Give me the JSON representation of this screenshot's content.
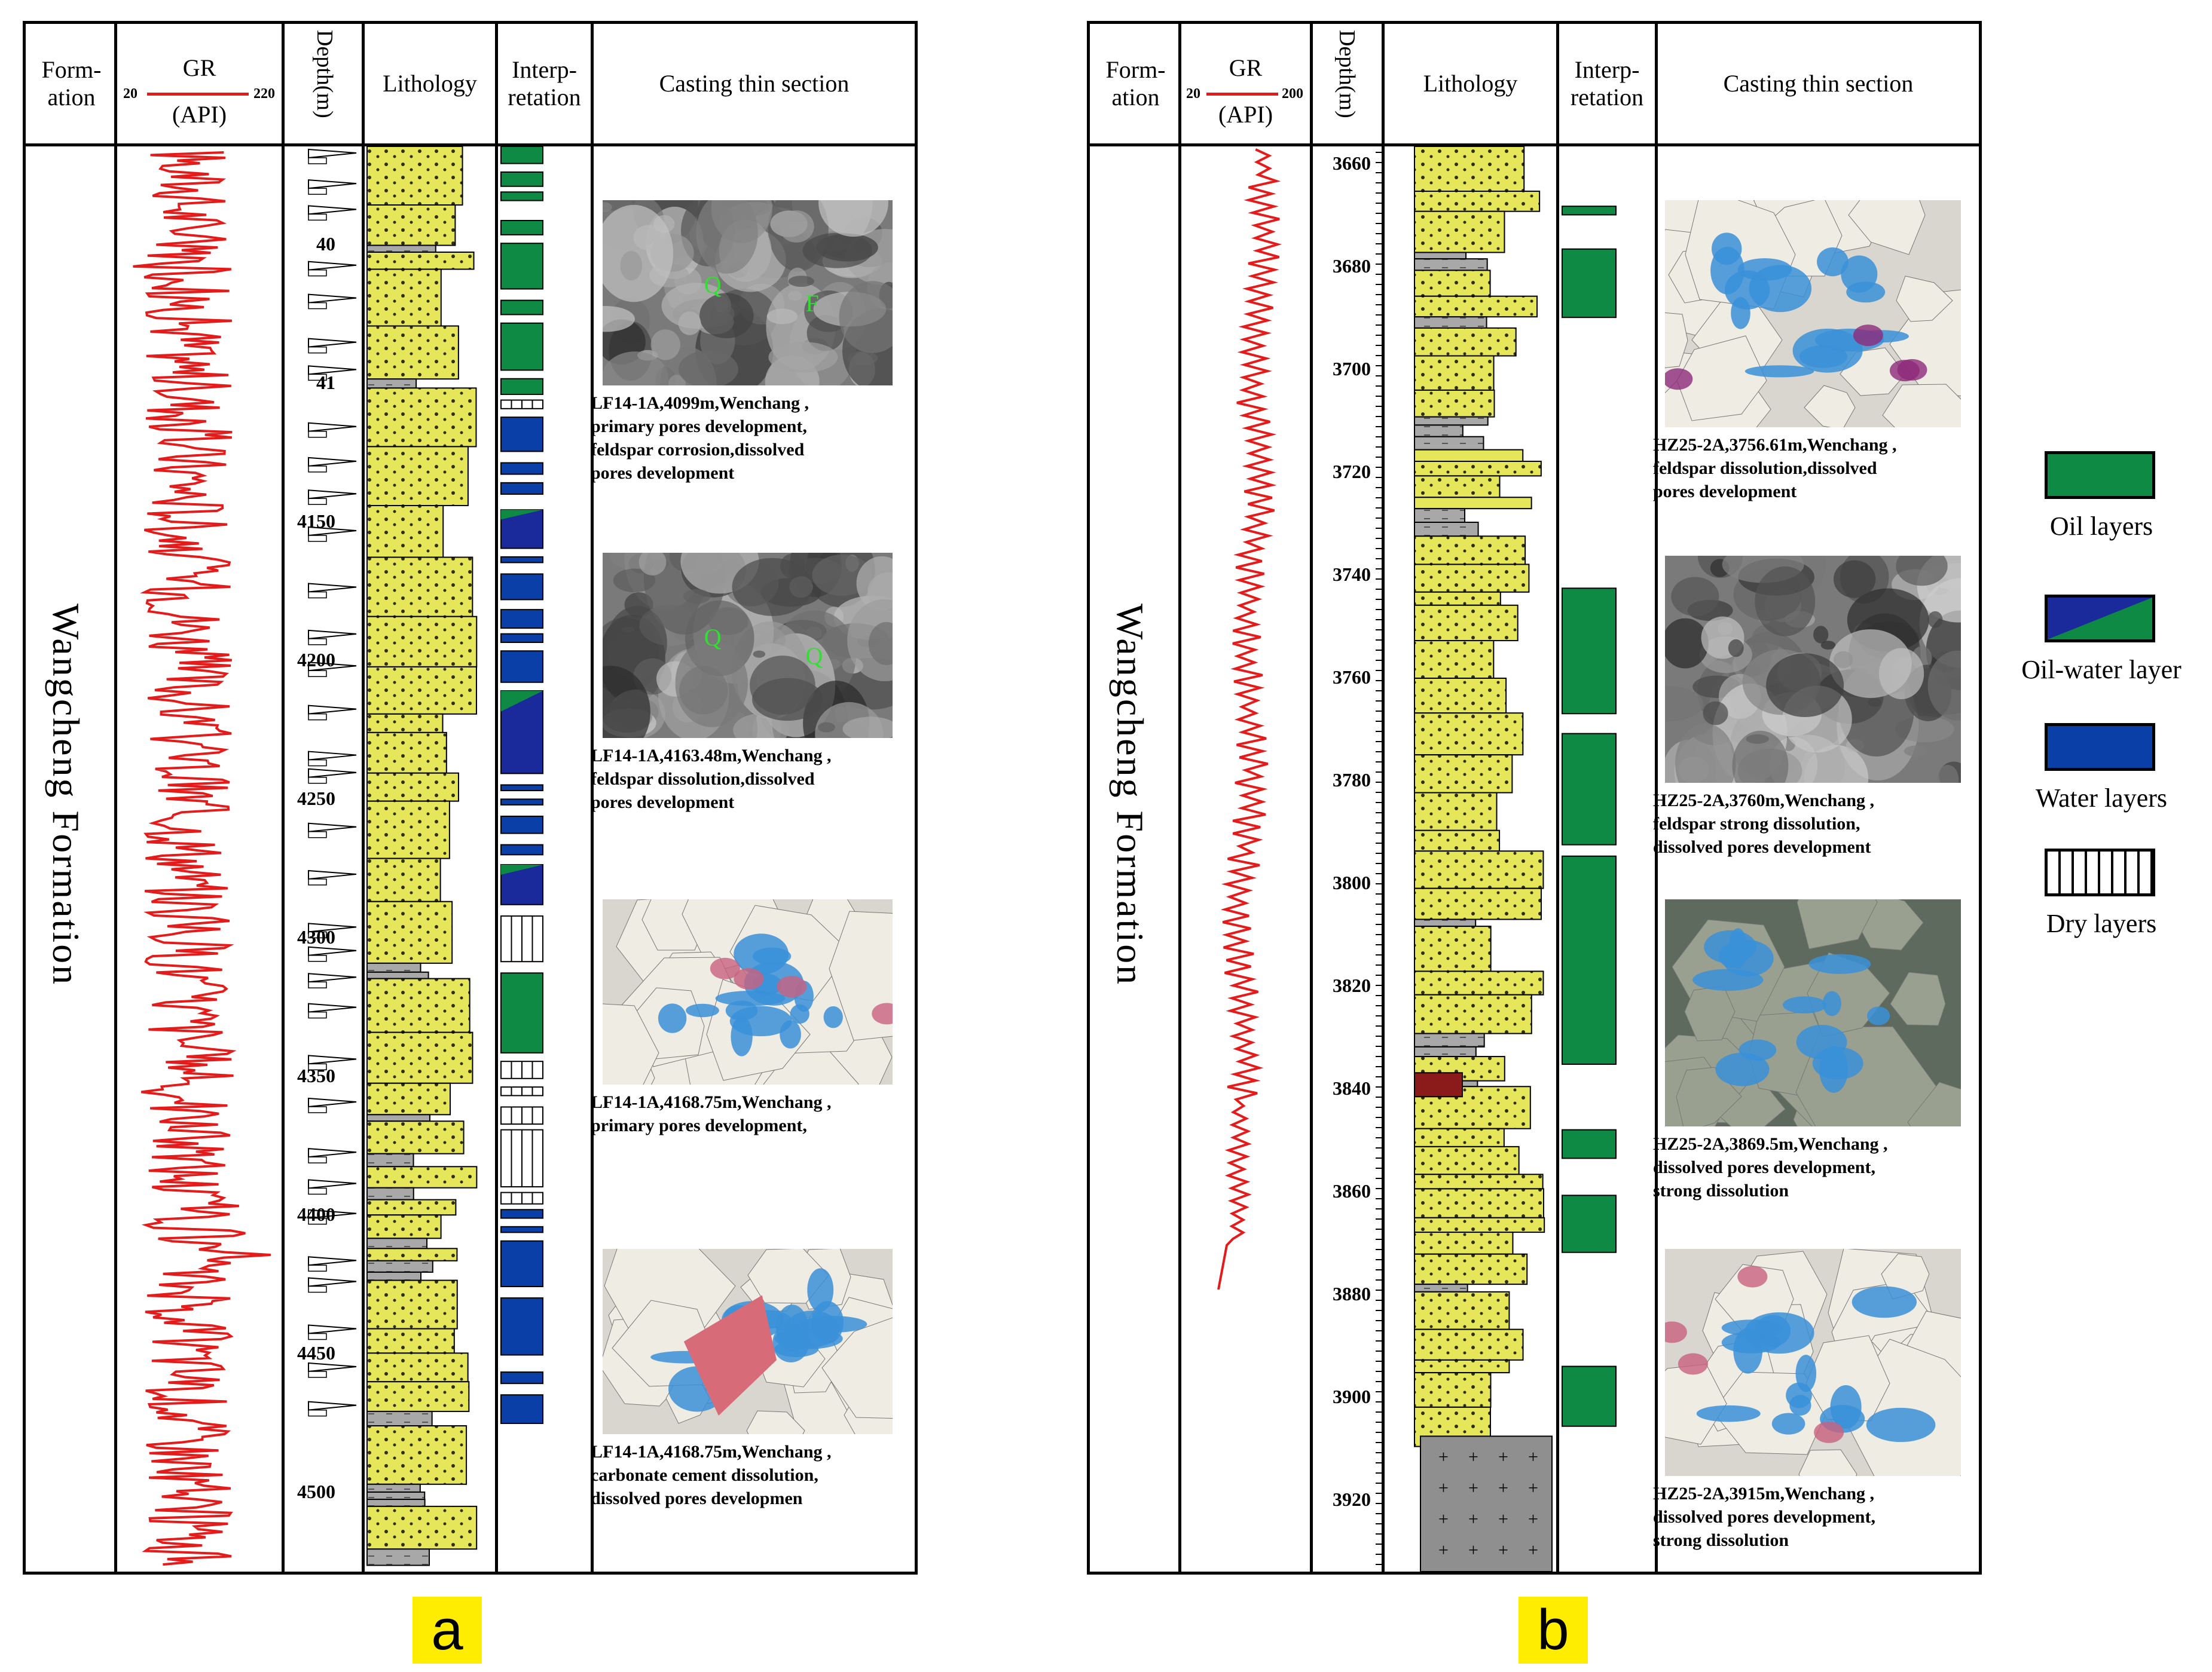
{
  "panel_a": {
    "label": "a",
    "headers": {
      "formation": "Form-\nation",
      "gr_title": "GR",
      "gr_min": "20",
      "gr_max": "220",
      "gr_unit": "(API)",
      "depth": "Depth(m)",
      "lithology": "Lithology",
      "interpretation": "Interp-\nretation",
      "thin_section": "Casting thin section"
    },
    "formation_name": "Wangcheng Formation",
    "depth_ticks": [
      "40",
      "41",
      "4150",
      "4200",
      "4250",
      "4300",
      "4350",
      "4400",
      "4450",
      "4500"
    ],
    "interpretation_intervals": [
      {
        "type": "oil",
        "top": 0.0,
        "bottom": 0.012
      },
      {
        "type": "oil",
        "top": 0.018,
        "bottom": 0.028
      },
      {
        "type": "oil",
        "top": 0.032,
        "bottom": 0.038
      },
      {
        "type": "oil",
        "top": 0.052,
        "bottom": 0.062
      },
      {
        "type": "oil",
        "top": 0.068,
        "bottom": 0.1
      },
      {
        "type": "oil",
        "top": 0.108,
        "bottom": 0.118
      },
      {
        "type": "oil",
        "top": 0.124,
        "bottom": 0.157
      },
      {
        "type": "oil",
        "top": 0.163,
        "bottom": 0.174
      },
      {
        "type": "dry",
        "top": 0.178,
        "bottom": 0.184
      },
      {
        "type": "water",
        "top": 0.19,
        "bottom": 0.214
      },
      {
        "type": "water",
        "top": 0.222,
        "bottom": 0.23
      },
      {
        "type": "water",
        "top": 0.236,
        "bottom": 0.244
      },
      {
        "type": "oil-water",
        "top": 0.255,
        "bottom": 0.282
      },
      {
        "type": "water",
        "top": 0.288,
        "bottom": 0.292
      },
      {
        "type": "water",
        "top": 0.3,
        "bottom": 0.318
      },
      {
        "type": "water",
        "top": 0.325,
        "bottom": 0.338
      },
      {
        "type": "water",
        "top": 0.342,
        "bottom": 0.348
      },
      {
        "type": "water",
        "top": 0.354,
        "bottom": 0.376
      },
      {
        "type": "oil-water",
        "top": 0.382,
        "bottom": 0.44
      },
      {
        "type": "water",
        "top": 0.448,
        "bottom": 0.452
      },
      {
        "type": "water",
        "top": 0.458,
        "bottom": 0.462
      },
      {
        "type": "water",
        "top": 0.47,
        "bottom": 0.482
      },
      {
        "type": "water",
        "top": 0.49,
        "bottom": 0.497
      },
      {
        "type": "oil-water",
        "top": 0.504,
        "bottom": 0.532
      },
      {
        "type": "dry",
        "top": 0.54,
        "bottom": 0.572
      },
      {
        "type": "oil",
        "top": 0.58,
        "bottom": 0.636
      },
      {
        "type": "dry",
        "top": 0.642,
        "bottom": 0.654
      },
      {
        "type": "dry",
        "top": 0.66,
        "bottom": 0.666
      },
      {
        "type": "dry",
        "top": 0.674,
        "bottom": 0.686
      },
      {
        "type": "dry",
        "top": 0.69,
        "bottom": 0.73
      },
      {
        "type": "dry",
        "top": 0.734,
        "bottom": 0.742
      },
      {
        "type": "water",
        "top": 0.746,
        "bottom": 0.752
      },
      {
        "type": "water",
        "top": 0.758,
        "bottom": 0.762
      },
      {
        "type": "water",
        "top": 0.768,
        "bottom": 0.8
      },
      {
        "type": "water",
        "top": 0.808,
        "bottom": 0.848
      },
      {
        "type": "water",
        "top": 0.86,
        "bottom": 0.868
      },
      {
        "type": "water",
        "top": 0.876,
        "bottom": 0.896
      }
    ],
    "thin_sections": [
      {
        "caption": "LF14-1A,4099m,Wenchang ,\nprimary  pores development,\nfeldspar corrosion,dissolved\npores development",
        "style": "sem",
        "marks": [
          "Q",
          "F"
        ]
      },
      {
        "caption": "LF14-1A,4163.48m,Wenchang ,\nfeldspar dissolution,dissolved\npores development",
        "style": "sem",
        "marks": [
          "Q",
          "Q"
        ]
      },
      {
        "caption": "LF14-1A,4168.75m,Wenchang ,\nprimary  pores development,",
        "style": "thin",
        "marks": []
      },
      {
        "caption": "LF14-1A,4168.75m,Wenchang ,\ncarbonate cement dissolution,\ndissolved pores developmen",
        "style": "thin-red",
        "marks": []
      }
    ]
  },
  "panel_b": {
    "label": "b",
    "headers": {
      "formation": "Form-\nation",
      "gr_title": "GR",
      "gr_min": "20",
      "gr_max": "200",
      "gr_unit": "(API)",
      "depth": "Depth(m)",
      "lithology": "Lithology",
      "interpretation": "Interp-\nretation",
      "thin_section": "Casting thin section"
    },
    "formation_name": "Wangcheng Formation",
    "depth_ticks": [
      "3660",
      "3680",
      "3700",
      "3720",
      "3740",
      "3760",
      "3780",
      "3800",
      "3820",
      "3840",
      "3860",
      "3880",
      "3900",
      "3920"
    ],
    "interpretation_intervals": [
      {
        "type": "oil",
        "top": 0.042,
        "bottom": 0.048
      },
      {
        "type": "oil",
        "top": 0.072,
        "bottom": 0.12
      },
      {
        "type": "oil",
        "top": 0.31,
        "bottom": 0.398
      },
      {
        "type": "oil",
        "top": 0.412,
        "bottom": 0.49
      },
      {
        "type": "oil",
        "top": 0.498,
        "bottom": 0.644
      },
      {
        "type": "oil",
        "top": 0.69,
        "bottom": 0.71
      },
      {
        "type": "oil",
        "top": 0.736,
        "bottom": 0.776
      },
      {
        "type": "oil",
        "top": 0.856,
        "bottom": 0.898
      }
    ],
    "thin_sections": [
      {
        "caption": "HZ25-2A,3756.61m,Wenchang ,\nfeldspar dissolution,dissolved\npores development",
        "style": "thin-purple",
        "marks": []
      },
      {
        "caption": "HZ25-2A,3760m,Wenchang ,\nfeldspar strong dissolution,\ndissolved pores development",
        "style": "sem",
        "marks": []
      },
      {
        "caption": "HZ25-2A,3869.5m,Wenchang ,\ndissolved pores development,\nstrong dissolution",
        "style": "thin-dark",
        "marks": []
      },
      {
        "caption": "HZ25-2A,3915m,Wenchang ,\ndissolved pores development,\nstrong dissolution",
        "style": "thin",
        "marks": []
      }
    ]
  },
  "legend": [
    {
      "key": "oil",
      "label": "Oil layers"
    },
    {
      "key": "oil-water",
      "label": "Oil-water  layer"
    },
    {
      "key": "water",
      "label": "Water layers"
    },
    {
      "key": "dry",
      "label": "Dry layers"
    }
  ],
  "colors": {
    "oil": "#0e8a45",
    "water": "#0b3fa8",
    "oil_water_green": "#0e8a45",
    "oil_water_blue": "#1a2a9a",
    "gr_curve": "#e31b1b",
    "sandstone": "#e6e65a",
    "mudstone": "#a8a8a8",
    "label_bg": "#ffed00"
  }
}
